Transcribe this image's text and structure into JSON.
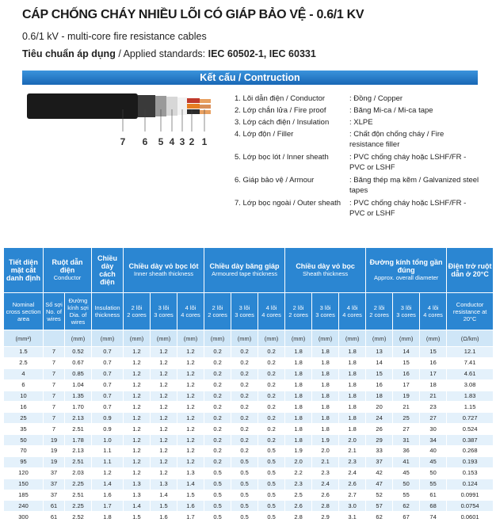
{
  "header": {
    "title": "CÁP CHỐNG CHÁY NHIỀU LÕI CÓ GIÁP BẢO VỆ - 0.6/1 KV",
    "subtitle": "0.6/1 kV - multi-core fire resistance cables",
    "standards_label_vi": "Tiêu chuẩn áp dụng",
    "standards_label_en": " / Applied standards: ",
    "standards_value": "IEC 60502-1, IEC 60331"
  },
  "section_title": "Kết cấu / Contruction",
  "diagram_numbers": [
    "7",
    "6",
    "5",
    "4",
    "3",
    "2",
    "1"
  ],
  "construction": [
    {
      "part": "1. Lõi dẫn điện / Conductor",
      "material": ": Đồng / Copper"
    },
    {
      "part": "2. Lớp chắn lửa / Fire proof",
      "material": ": Băng Mi-ca / Mi-ca tape"
    },
    {
      "part": "3. Lớp cách điện / Insulation",
      "material": ": XLPE"
    },
    {
      "part": "4. Lớp độn / Filler",
      "material": ": Chất độn chống cháy / Fire resistance filler"
    },
    {
      "part": "5. Lớp bọc lót / Inner sheath",
      "material": ": PVC chống cháy hoặc LSHF/FR - PVC or LSHF"
    },
    {
      "part": "6. Giáp bảo vệ / Armour",
      "material": ": Băng thép mạ kẽm / Galvanized steel tapes"
    },
    {
      "part": "7. Lớp bọc ngoài / Outer sheath",
      "material": ": PVC chống cháy hoặc LSHF/FR - PVC or LSHF"
    }
  ],
  "table": {
    "head": [
      {
        "vi": "Tiết diện mặt cắt danh định"
      },
      {
        "vi": "Ruột dẫn điện",
        "en": "Conductor"
      },
      {
        "vi": "Chiều dày cách điện"
      },
      {
        "vi": "Chiều dày vỏ bọc lót",
        "en": "Inner sheath thickness"
      },
      {
        "vi": "Chiều dày băng giáp",
        "en": "Armoured tape thickness"
      },
      {
        "vi": "Chiều dày vỏ bọc",
        "en": "Sheath thickness"
      },
      {
        "vi": "Đường kính tổng gần đúng",
        "en": "Approx. overall diameter"
      },
      {
        "vi": "Điện trở ruột dẫn ở 20°C"
      }
    ],
    "subhead": [
      [
        "Nominal cross section area"
      ],
      [
        "Số sợi",
        "No. of wires"
      ],
      [
        "Đường kính sợi",
        "Dia. of wires"
      ],
      [
        "Insulation thickness"
      ],
      [
        "2 lõi",
        "2 cores"
      ],
      [
        "3 lõi",
        "3 cores"
      ],
      [
        "4 lõi",
        "4 cores"
      ],
      [
        "2 lõi",
        "2 cores"
      ],
      [
        "3 lõi",
        "3 cores"
      ],
      [
        "4 lõi",
        "4 cores"
      ],
      [
        "2 lõi",
        "2 cores"
      ],
      [
        "3 lõi",
        "3 cores"
      ],
      [
        "4 lõi",
        "4 cores"
      ],
      [
        "2 lõi",
        "2 cores"
      ],
      [
        "3 lõi",
        "3 cores"
      ],
      [
        "4 lõi",
        "4 cores"
      ],
      [
        "Conductor resistance at 20°C"
      ]
    ],
    "units": [
      "(mm²)",
      null,
      "(mm)",
      "(mm)",
      "(mm)",
      "(mm)",
      "(mm)",
      "(mm)",
      "(mm)",
      "(mm)",
      "(mm)",
      "(mm)",
      "(mm)",
      "(mm)",
      "(mm)",
      "(mm)",
      "(Ω/km)"
    ],
    "rows": [
      [
        "1.5",
        "7",
        "0.52",
        "0.7",
        "1.2",
        "1.2",
        "1.2",
        "0.2",
        "0.2",
        "0.2",
        "1.8",
        "1.8",
        "1.8",
        "13",
        "14",
        "15",
        "12.1"
      ],
      [
        "2.5",
        "7",
        "0.67",
        "0.7",
        "1.2",
        "1.2",
        "1.2",
        "0.2",
        "0.2",
        "0.2",
        "1.8",
        "1.8",
        "1.8",
        "14",
        "15",
        "16",
        "7.41"
      ],
      [
        "4",
        "7",
        "0.85",
        "0.7",
        "1.2",
        "1.2",
        "1.2",
        "0.2",
        "0.2",
        "0.2",
        "1.8",
        "1.8",
        "1.8",
        "15",
        "16",
        "17",
        "4.61"
      ],
      [
        "6",
        "7",
        "1.04",
        "0.7",
        "1.2",
        "1.2",
        "1.2",
        "0.2",
        "0.2",
        "0.2",
        "1.8",
        "1.8",
        "1.8",
        "16",
        "17",
        "18",
        "3.08"
      ],
      [
        "10",
        "7",
        "1.35",
        "0.7",
        "1.2",
        "1.2",
        "1.2",
        "0.2",
        "0.2",
        "0.2",
        "1.8",
        "1.8",
        "1.8",
        "18",
        "19",
        "21",
        "1.83"
      ],
      [
        "16",
        "7",
        "1.70",
        "0.7",
        "1.2",
        "1.2",
        "1.2",
        "0.2",
        "0.2",
        "0.2",
        "1.8",
        "1.8",
        "1.8",
        "20",
        "21",
        "23",
        "1.15"
      ],
      [
        "25",
        "7",
        "2.13",
        "0.9",
        "1.2",
        "1.2",
        "1.2",
        "0.2",
        "0.2",
        "0.2",
        "1.8",
        "1.8",
        "1.8",
        "24",
        "25",
        "27",
        "0.727"
      ],
      [
        "35",
        "7",
        "2.51",
        "0.9",
        "1.2",
        "1.2",
        "1.2",
        "0.2",
        "0.2",
        "0.2",
        "1.8",
        "1.8",
        "1.8",
        "26",
        "27",
        "30",
        "0.524"
      ],
      [
        "50",
        "19",
        "1.78",
        "1.0",
        "1.2",
        "1.2",
        "1.2",
        "0.2",
        "0.2",
        "0.2",
        "1.8",
        "1.9",
        "2.0",
        "29",
        "31",
        "34",
        "0.387"
      ],
      [
        "70",
        "19",
        "2.13",
        "1.1",
        "1.2",
        "1.2",
        "1.2",
        "0.2",
        "0.2",
        "0.5",
        "1.9",
        "2.0",
        "2.1",
        "33",
        "36",
        "40",
        "0.268"
      ],
      [
        "95",
        "19",
        "2.51",
        "1.1",
        "1.2",
        "1.2",
        "1.2",
        "0.2",
        "0.5",
        "0.5",
        "2.0",
        "2.1",
        "2.3",
        "37",
        "41",
        "45",
        "0.193"
      ],
      [
        "120",
        "37",
        "2.03",
        "1.2",
        "1.2",
        "1.2",
        "1.3",
        "0.5",
        "0.5",
        "0.5",
        "2.2",
        "2.3",
        "2.4",
        "42",
        "45",
        "50",
        "0.153"
      ],
      [
        "150",
        "37",
        "2.25",
        "1.4",
        "1.3",
        "1.3",
        "1.4",
        "0.5",
        "0.5",
        "0.5",
        "2.3",
        "2.4",
        "2.6",
        "47",
        "50",
        "55",
        "0.124"
      ],
      [
        "185",
        "37",
        "2.51",
        "1.6",
        "1.3",
        "1.4",
        "1.5",
        "0.5",
        "0.5",
        "0.5",
        "2.5",
        "2.6",
        "2.7",
        "52",
        "55",
        "61",
        "0.0991"
      ],
      [
        "240",
        "61",
        "2.25",
        "1.7",
        "1.4",
        "1.5",
        "1.6",
        "0.5",
        "0.5",
        "0.5",
        "2.6",
        "2.8",
        "3.0",
        "57",
        "62",
        "68",
        "0.0754"
      ],
      [
        "300",
        "61",
        "2.52",
        "1.8",
        "1.5",
        "1.6",
        "1.7",
        "0.5",
        "0.5",
        "0.5",
        "2.8",
        "2.9",
        "3.1",
        "62",
        "67",
        "74",
        "0.0601"
      ]
    ]
  }
}
